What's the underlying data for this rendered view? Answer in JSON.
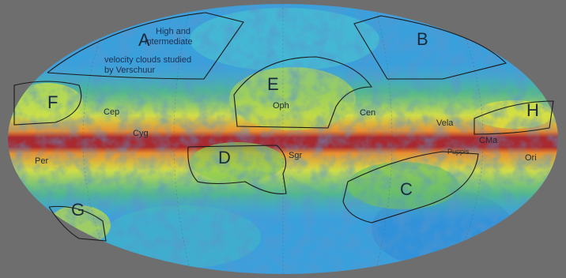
{
  "regions": [
    {
      "label": "A"
    },
    {
      "label": "B"
    },
    {
      "label": "C"
    },
    {
      "label": "D"
    },
    {
      "label": "E"
    },
    {
      "label": "F"
    },
    {
      "label": "G"
    },
    {
      "label": "H"
    }
  ],
  "annotation": {
    "lines": [
      "High and",
      "intermediate",
      "velocity clouds studied",
      "by Verschuur"
    ]
  },
  "constellations": [
    "Cep",
    "Cyg",
    "Oph",
    "Cen",
    "Vela",
    "CMa",
    "Puppis",
    "Sgr",
    "Per",
    "Ori"
  ]
}
